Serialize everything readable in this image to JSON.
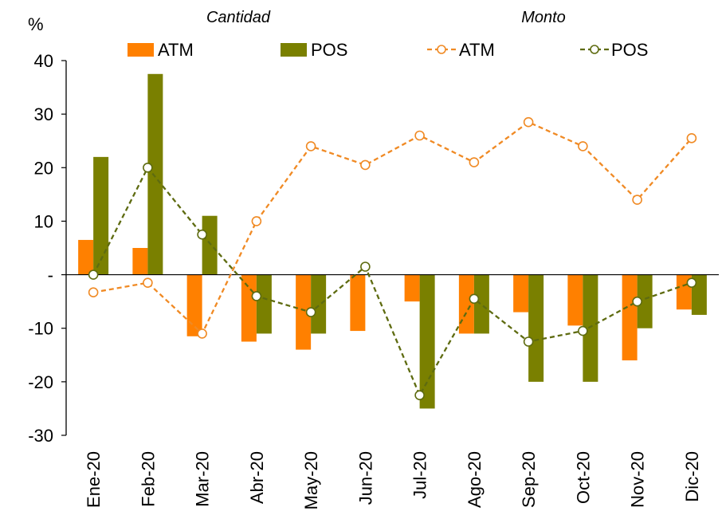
{
  "chart_data": {
    "type": "bar",
    "ylabel": "%",
    "ylim": [
      -30,
      40
    ],
    "yticks": [
      {
        "value": 40,
        "label": "40"
      },
      {
        "value": 30,
        "label": "30"
      },
      {
        "value": 20,
        "label": "20"
      },
      {
        "value": 10,
        "label": "10"
      },
      {
        "value": 0,
        "label": "-"
      },
      {
        "value": -10,
        "label": "-10"
      },
      {
        "value": -20,
        "label": "-20"
      },
      {
        "value": -30,
        "label": "-30"
      }
    ],
    "categories": [
      "Ene-20",
      "Feb-20",
      "Mar-20",
      "Abr-20",
      "May-20",
      "Jun-20",
      "Jul-20",
      "Ago-20",
      "Sep-20",
      "Oct-20",
      "Nov-20",
      "Dic-20"
    ],
    "group_labels": {
      "bars": "Cantidad",
      "lines": "Monto"
    },
    "bar_series": [
      {
        "name": "ATM",
        "color": "#FF8000",
        "values": [
          6.5,
          5,
          -11.5,
          -12.5,
          -14,
          -10.5,
          -5,
          -11,
          -7,
          -9.5,
          -16,
          -6.5
        ]
      },
      {
        "name": "POS",
        "color": "#7A8000",
        "values": [
          22,
          37.5,
          11,
          -11,
          -11,
          0,
          -25,
          -11,
          -20,
          -20,
          -10,
          -7.5
        ]
      }
    ],
    "line_series": [
      {
        "name": "ATM",
        "color": "#F08A24",
        "style": "dashed",
        "marker": "open-circle",
        "values": [
          -3.3,
          -1.5,
          -11,
          10,
          24,
          20.5,
          26,
          21,
          28.5,
          24,
          14,
          25.5
        ]
      },
      {
        "name": "POS",
        "color": "#5E6B10",
        "style": "dashed",
        "marker": "open-circle",
        "values": [
          0,
          20,
          7.5,
          -4,
          -7,
          1.5,
          -22.5,
          -4.5,
          -12.5,
          -10.5,
          -5,
          -1.5
        ]
      }
    ]
  }
}
